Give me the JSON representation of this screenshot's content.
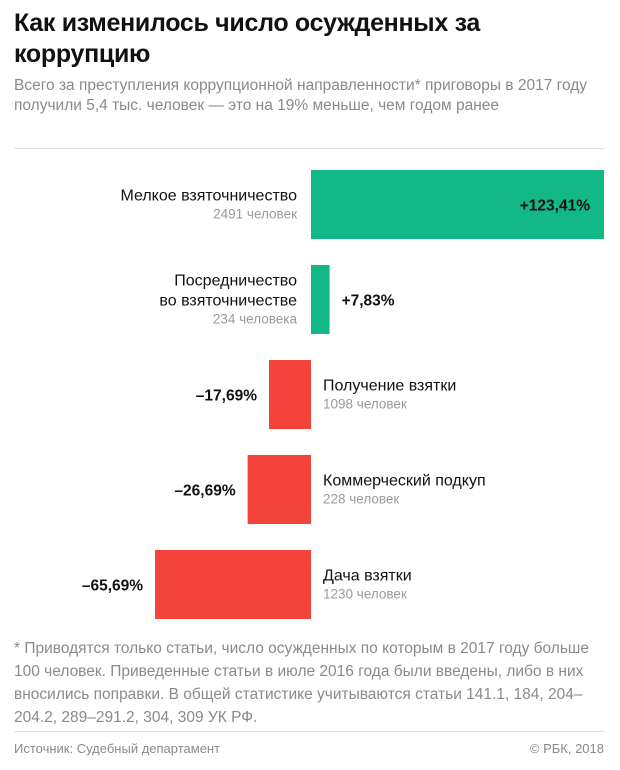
{
  "header": {
    "title": "Как изменилось число осужденных за коррупцию",
    "subtitle": "Всего за преступления коррупционной направленности* приговоры в 2017 году получили 5,4 тыс. человек — это на 19% меньше, чем годом ранее"
  },
  "chart_data": {
    "type": "bar",
    "orientation": "horizontal-diverging",
    "categories": [
      [
        "Мелкое взяточничество"
      ],
      [
        "Посредничество",
        "во взяточничестве"
      ],
      [
        "Получение взятки"
      ],
      [
        "Коммерческий подкуп"
      ],
      [
        "Дача взятки"
      ]
    ],
    "counts": [
      "2491 человек",
      "234 человека",
      "1098 человек",
      "228 человек",
      "1230 человек"
    ],
    "values": [
      123.41,
      7.83,
      -17.69,
      -26.69,
      -65.69
    ],
    "value_labels": [
      "+123,41%",
      "+7,83%",
      "–17,69%",
      "–26,69%",
      "–65,69%"
    ],
    "colors": {
      "positive": "#12b886",
      "negative": "#f4433b"
    },
    "xlim": [
      -90,
      125
    ]
  },
  "footer": {
    "footnote": "* Приводятся только статьи, число осужденных по которым в 2017 году больше 100 человек. Приведенные статьи в июле 2016 года были введены, либо в них вносились поправки. В общей статистике учитываются статьи 141.1, 184, 204–204.2, 289–291.2, 304, 309 УК РФ.",
    "source": "Источник: Судебный департамент",
    "copyright": "© РБК, 2018"
  }
}
